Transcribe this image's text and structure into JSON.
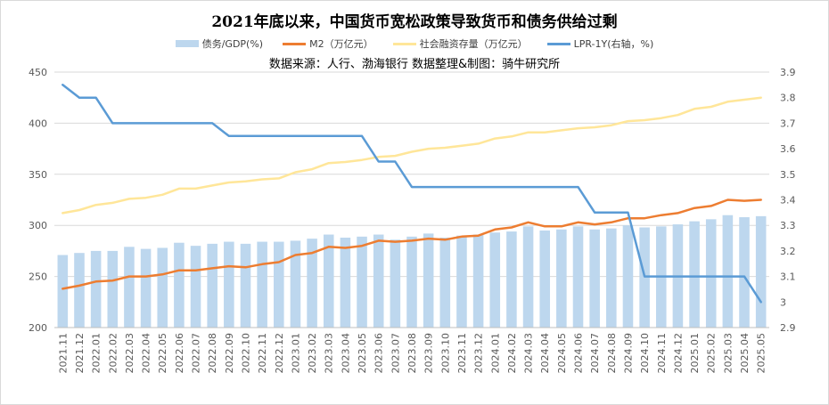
{
  "title": "2021年底以来，中国货币宽松政策导致货币和债务供给过剩",
  "source": "数据来源：人行、渤海银行  数据整理&制图：骑牛研究所",
  "colors": {
    "bars": "#bdd7ee",
    "m2": "#ed7d31",
    "social": "#ffe699",
    "lpr": "#5b9bd5",
    "grid": "#d9d9d9",
    "text": "#595959"
  },
  "chart_data": {
    "type": "bar",
    "title": "2021年底以来，中国货币宽松政策导致货币和债务供给过剩",
    "categories": [
      "2021.11",
      "2021.12",
      "2022.01",
      "2022.02",
      "2022.03",
      "2022.04",
      "2022.05",
      "2022.06",
      "2022.07",
      "2022.08",
      "2022.09",
      "2022.10",
      "2022.11",
      "2022.12",
      "2023.01",
      "2023.02",
      "2023.03",
      "2023.04",
      "2023.05",
      "2023.06",
      "2023.07",
      "2023.08",
      "2023.09",
      "2023.10",
      "2023.11",
      "2023.12",
      "2024.01",
      "2024.02",
      "2024.03",
      "2024.04",
      "2024.05",
      "2024.06",
      "2024.07",
      "2024.08",
      "2024.09",
      "2024.10",
      "2024.11",
      "2024.12",
      "2025.01",
      "2025.02",
      "2025.03",
      "2025.04",
      "2025.05"
    ],
    "y_left": {
      "min": 200,
      "max": 450,
      "ticks": [
        "200",
        "250",
        "300",
        "350",
        "400",
        "450"
      ]
    },
    "y_right": {
      "min": 2.9,
      "max": 3.9,
      "ticks": [
        "2.9",
        "3",
        "3.1",
        "3.2",
        "3.3",
        "3.4",
        "3.5",
        "3.6",
        "3.7",
        "3.8",
        "3.9"
      ]
    },
    "grid": "horizontal",
    "legend_position": "top",
    "series": [
      {
        "name": "债务/GDP(%)",
        "type": "bar",
        "axis": "left",
        "values": [
          271,
          273,
          275,
          275,
          279,
          277,
          278,
          283,
          280,
          282,
          284,
          282,
          284,
          284,
          285,
          287,
          291,
          288,
          289,
          291,
          286,
          289,
          292,
          288,
          290,
          291,
          293,
          294,
          299,
          295,
          296,
          299,
          296,
          297,
          300,
          298,
          299,
          301,
          304,
          306,
          310,
          308,
          309
        ]
      },
      {
        "name": "M2（万亿元）",
        "type": "line",
        "axis": "left",
        "values": [
          238,
          241,
          245,
          246,
          250,
          250,
          252,
          256,
          256,
          258,
          260,
          259,
          262,
          264,
          271,
          273,
          279,
          278,
          280,
          285,
          284,
          285,
          287,
          286,
          289,
          290,
          296,
          298,
          303,
          299,
          299,
          303,
          301,
          303,
          307,
          307,
          310,
          312,
          317,
          319,
          325,
          324,
          325
        ]
      },
      {
        "name": "社会融资存量（万亿元）",
        "type": "line",
        "axis": "left",
        "values": [
          312,
          315,
          320,
          322,
          326,
          327,
          330,
          336,
          336,
          339,
          342,
          343,
          345,
          346,
          352,
          355,
          361,
          362,
          364,
          367,
          368,
          372,
          375,
          376,
          378,
          380,
          385,
          387,
          391,
          391,
          393,
          395,
          396,
          398,
          402,
          403,
          405,
          408,
          414,
          416,
          421,
          423,
          425
        ]
      },
      {
        "name": "LPR-1Y(右轴，%)",
        "type": "line",
        "axis": "right",
        "values": [
          3.85,
          3.8,
          3.8,
          3.7,
          3.7,
          3.7,
          3.7,
          3.7,
          3.7,
          3.7,
          3.65,
          3.65,
          3.65,
          3.65,
          3.65,
          3.65,
          3.65,
          3.65,
          3.65,
          3.55,
          3.55,
          3.45,
          3.45,
          3.45,
          3.45,
          3.45,
          3.45,
          3.45,
          3.45,
          3.45,
          3.45,
          3.45,
          3.35,
          3.35,
          3.35,
          3.1,
          3.1,
          3.1,
          3.1,
          3.1,
          3.1,
          3.1,
          3.0
        ]
      }
    ]
  }
}
